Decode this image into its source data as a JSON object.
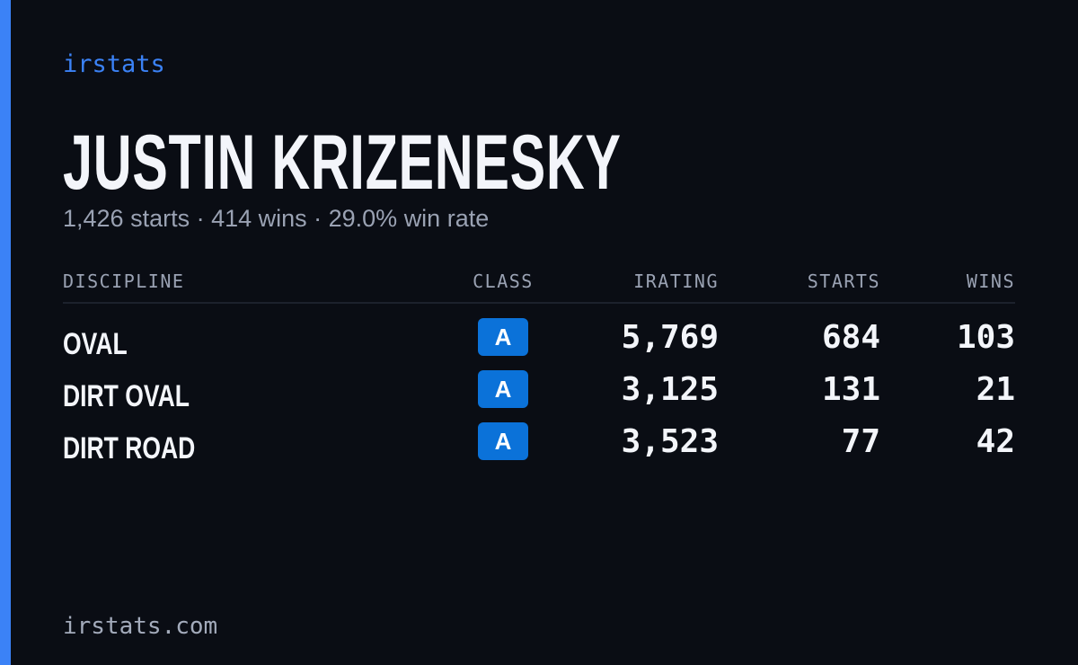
{
  "brand": "irstats",
  "driver": {
    "name": "JUSTIN KRIZENESKY",
    "summary": "1,426 starts · 414 wins · 29.0% win rate"
  },
  "table": {
    "headers": [
      "DISCIPLINE",
      "CLASS",
      "IRATING",
      "STARTS",
      "WINS"
    ],
    "rows": [
      [
        "OVAL",
        "A",
        "5,769",
        "684",
        "103"
      ],
      [
        "DIRT OVAL",
        "A",
        "3,125",
        "131",
        "21"
      ],
      [
        "DIRT ROAD",
        "A",
        "3,523",
        "77",
        "42"
      ]
    ]
  },
  "footer": "irstats.com"
}
